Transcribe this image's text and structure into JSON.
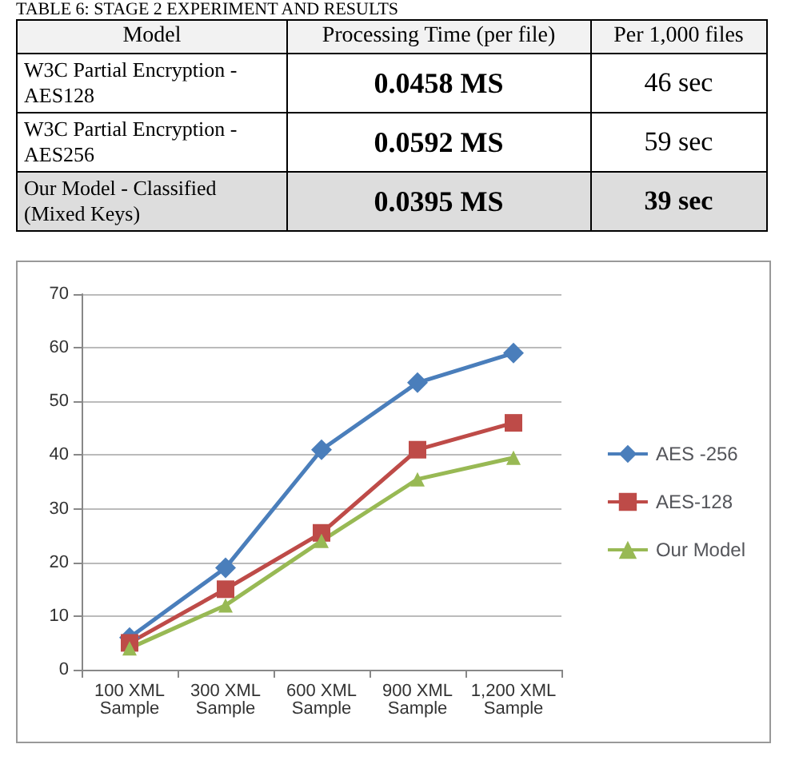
{
  "chart_data": [
    {
      "type": "other",
      "title": "TABLE 6: STAGE 2 EXPERIMENT AND RESULTS",
      "categories": [
        "Model",
        "Processing Time (per file)",
        "Per 1,000 files"
      ],
      "annotations": [
        "W3C Partial Encryption - AES128",
        "0.0458 MS",
        "46 sec",
        "W3C Partial Encryption - AES256",
        "0.0592 MS",
        "59 sec",
        "Our Model - Classified (Mixed Keys)",
        "0.0395 MS",
        "39 sec"
      ]
    },
    {
      "type": "line",
      "categories": [
        "100 XML Sample",
        "300 XML Sample",
        "600 XML Sample",
        "900 XML Sample",
        "1,200 XML Sample"
      ],
      "series": [
        {
          "name": "AES -256",
          "color": "#4a7ebb",
          "marker": "diamond",
          "values": [
            6,
            19,
            41,
            53.5,
            59
          ]
        },
        {
          "name": "AES-128",
          "color": "#be4b48",
          "marker": "square",
          "values": [
            5,
            15,
            25.5,
            41,
            46
          ]
        },
        {
          "name": "Our Model",
          "color": "#98b954",
          "marker": "triangle",
          "values": [
            4,
            12,
            24,
            35.5,
            39.5
          ]
        }
      ],
      "ylim": [
        0,
        70
      ],
      "yticks": [
        0,
        10,
        20,
        30,
        40,
        50,
        60,
        70
      ],
      "grid": "y",
      "legend": "right"
    }
  ]
}
